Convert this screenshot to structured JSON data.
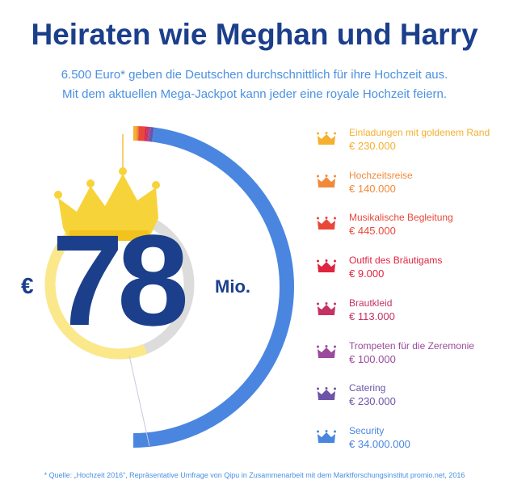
{
  "title": "Heiraten wie Meghan und Harry",
  "subtitle_line1": "6.500 Euro* geben die Deutschen durchschnittlich für ihre Hochzeit aus.",
  "subtitle_line2": "Mit dem aktuellen Mega-Jackpot kann jeder eine royale Hochzeit feiern.",
  "jackpot": {
    "currency": "€",
    "amount": "78",
    "unit": "Mio."
  },
  "footnote": "* Quelle: „Hochzeit 2016“, Repräsentative Umfrage von Qipu in Zusammenarbeit mit dem Marktforschungsinstitut promio.net, 2016",
  "colors": {
    "title": "#1c3f8c",
    "subtitle": "#4a90e2",
    "crown": "#f7d33a",
    "inner_ring_yellow": "#fbe88a",
    "inner_ring_grey": "#dcdcdc"
  },
  "chart_data": {
    "type": "pie",
    "shape": "half-ring",
    "categories": [
      "Einladungen mit goldenem Rand",
      "Hochzeitsreise",
      "Musikalische Begleitung",
      "Outfit des Bräutigams",
      "Brautkleid",
      "Trompeten für die Zeremonie",
      "Catering",
      "Security"
    ],
    "labels": [
      "€ 230.000",
      "€ 140.000",
      "€ 445.000",
      "€ 9.000",
      "€ 113.000",
      "€ 100.000",
      "€ 230.000",
      "€ 34.000.000"
    ],
    "values": [
      230000,
      140000,
      445000,
      9000,
      113000,
      100000,
      230000,
      34000000
    ],
    "colors": [
      "#f5b02e",
      "#f08a3a",
      "#e8483a",
      "#e0243f",
      "#c43364",
      "#9b4a9c",
      "#6d54a8",
      "#4a86e0"
    ],
    "legend": "right",
    "icon": "crown-icon"
  }
}
